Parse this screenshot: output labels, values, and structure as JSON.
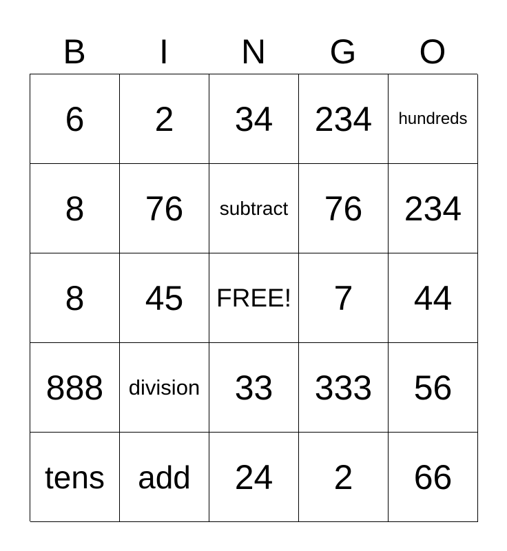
{
  "header": [
    "B",
    "I",
    "N",
    "G",
    "O"
  ],
  "cells": [
    [
      "6",
      "2",
      "34",
      "234",
      "hundreds"
    ],
    [
      "8",
      "76",
      "subtract",
      "76",
      "234"
    ],
    [
      "8",
      "45",
      "FREE!",
      "7",
      "44"
    ],
    [
      "888",
      "division",
      "33",
      "333",
      "56"
    ],
    [
      "tens",
      "add",
      "24",
      "2",
      "66"
    ]
  ]
}
